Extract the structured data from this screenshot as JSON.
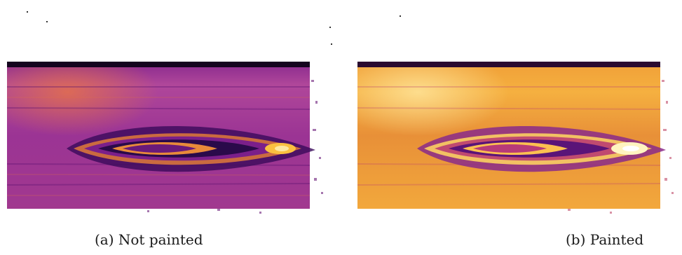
{
  "figure": {
    "panels": [
      {
        "id": "a",
        "caption": "(a) Not painted",
        "colormap": "inferno",
        "intensity": 0.45
      },
      {
        "id": "b",
        "caption": "(b) Painted",
        "colormap": "inferno",
        "intensity": 0.8
      }
    ]
  }
}
